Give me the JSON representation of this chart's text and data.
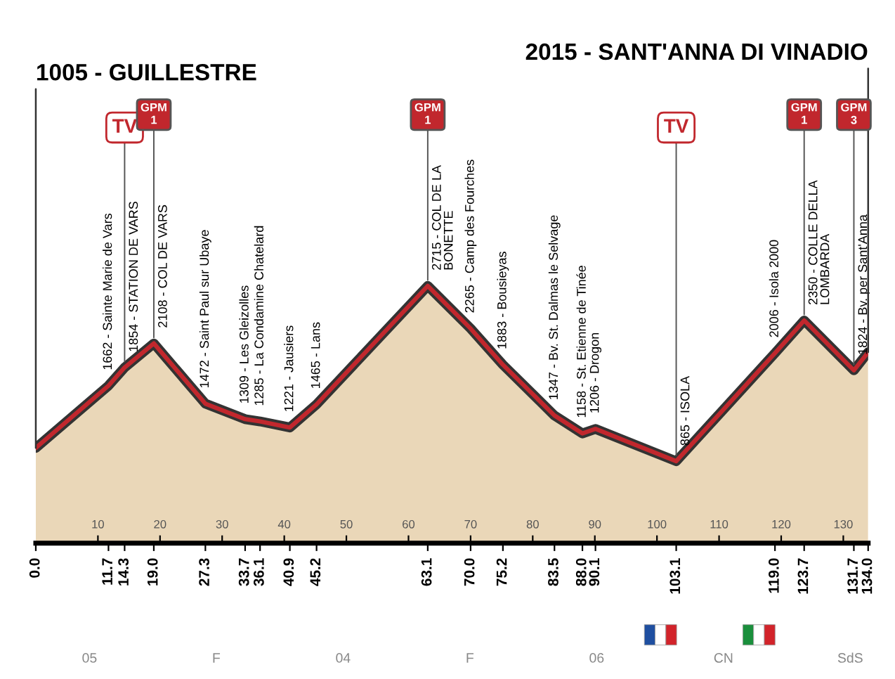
{
  "chart_data": {
    "type": "area",
    "x": [
      0.0,
      11.7,
      14.3,
      19.0,
      27.3,
      33.7,
      36.1,
      40.9,
      45.2,
      63.1,
      70.0,
      75.2,
      83.5,
      88.0,
      90.1,
      103.1,
      119.0,
      123.7,
      131.7,
      134.0
    ],
    "series": [
      {
        "color": "#c1272d",
        "values": [
          1005,
          1662,
          1854,
          2108,
          1472,
          1309,
          1285,
          1221,
          1465,
          2715,
          2265,
          1883,
          1347,
          1158,
          1206,
          865,
          2006,
          2350,
          1824,
          2015
        ],
        "value_labels": [
          null,
          "1662 - Sainte Marie de Vars",
          "1854 - STATION DE VARS",
          "2108 - COL DE VARS",
          "1472 - Saint Paul sur Ubaye",
          "1309 - Les Gleizolles",
          "1285 - La Condamine Chatelard",
          "1221 - Jausiers",
          "1465 - Lans",
          "2715 - COL DE LA\nBONETTE",
          "2265 - Camp des Fourches",
          "1883 - Bousieyas",
          "1347 - Bv. St. Dalmas le Selvage",
          "1158 - St. Etienne de Tinée",
          "1206 - Drogon",
          "865 - ISOLA",
          "2006 - Isola 2000",
          "2350 - COLLE DELLA\nLOMBARDA",
          "1824 - Bv. per Sant'Anna",
          null
        ]
      }
    ],
    "xlim": [
      0.0,
      134.0
    ],
    "xticks": [
      {
        "value": 0.0,
        "label": "0.0"
      },
      {
        "value": 11.7,
        "label": "11.7"
      },
      {
        "value": 14.3,
        "label": "14.3"
      },
      {
        "value": 19.0,
        "label": "19.0"
      },
      {
        "value": 27.3,
        "label": "27.3"
      },
      {
        "value": 33.7,
        "label": "33.7"
      },
      {
        "value": 36.1,
        "label": "36.1"
      },
      {
        "value": 40.9,
        "label": "40.9"
      },
      {
        "value": 45.2,
        "label": "45.2"
      },
      {
        "value": 63.1,
        "label": "63.1"
      },
      {
        "value": 70.0,
        "label": "70.0"
      },
      {
        "value": 75.2,
        "label": "75.2"
      },
      {
        "value": 83.5,
        "label": "83.5"
      },
      {
        "value": 88.0,
        "label": "88.0"
      },
      {
        "value": 90.1,
        "label": "90.1"
      },
      {
        "value": 103.1,
        "label": "103.1"
      },
      {
        "value": 119.0,
        "label": "119.0"
      },
      {
        "value": 123.7,
        "label": "123.7"
      },
      {
        "value": 131.7,
        "label": "131.7"
      },
      {
        "value": 134.0,
        "label": "134.0"
      }
    ],
    "x2lim": [
      0.0,
      134.0
    ],
    "x2ticks": [
      10,
      20,
      30,
      40,
      50,
      60,
      70,
      80,
      90,
      100,
      110,
      120,
      130
    ],
    "tick_labels": "x",
    "grid": false,
    "legend": false,
    "annotations": [
      {
        "text": "1005 - GUILLESTRE",
        "x": 0.0,
        "y": 1005
      },
      {
        "text": "2015 - SANT'ANNA DI VINADIO",
        "x": 134.0,
        "y": 2015
      },
      {
        "text": "TV",
        "x": 14.3,
        "y": 1854
      },
      {
        "text": "GPM\n1",
        "x": 19.0,
        "y": 2108
      },
      {
        "text": "GPM\n1",
        "x": 63.1,
        "y": 2715
      },
      {
        "text": "TV",
        "x": 103.1,
        "y": 865
      },
      {
        "text": "GPM\n1",
        "x": 123.7,
        "y": 2350
      },
      {
        "text": "GPM\n3",
        "x": 131.7,
        "y": 1824
      },
      "05",
      "F",
      "04",
      "F",
      "06",
      "CN",
      "SdS"
    ]
  }
}
